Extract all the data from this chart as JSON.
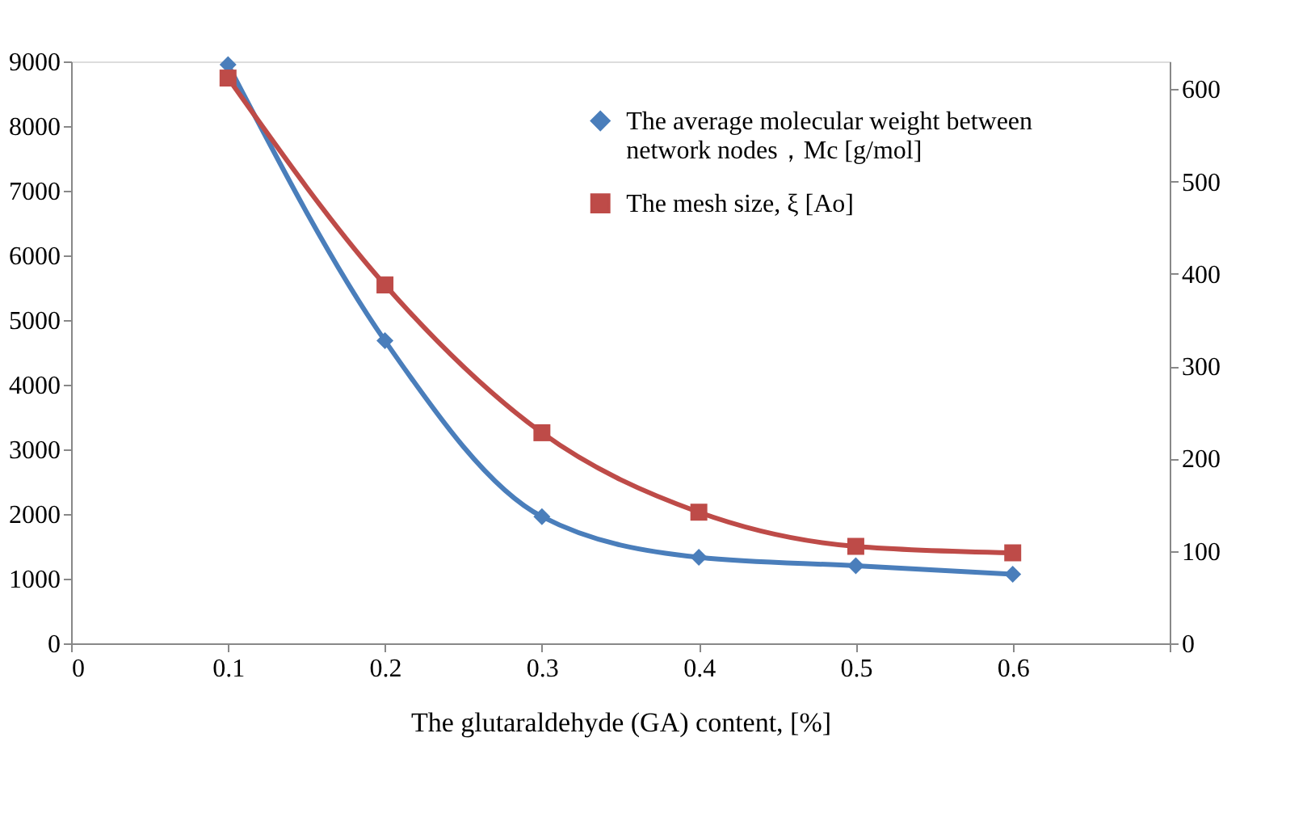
{
  "chart_data": {
    "type": "line",
    "xlabel": "The glutaraldehyde (GA) content, [%]",
    "x": [
      0.1,
      0.2,
      0.3,
      0.4,
      0.5,
      0.6
    ],
    "xlim": [
      0,
      0.7
    ],
    "xticks": [
      0,
      0.1,
      0.2,
      0.3,
      0.4,
      0.5,
      0.6,
      {
        "value": 0.7,
        "label": null
      }
    ],
    "ylim": [
      0,
      9000
    ],
    "yticks": [
      0,
      1000,
      2000,
      3000,
      4000,
      5000,
      6000,
      7000,
      8000,
      9000
    ],
    "y2lim": [
      0,
      630
    ],
    "y2ticks": [
      0,
      100,
      200,
      300,
      400,
      500,
      600
    ],
    "grid": false,
    "legend": "top right",
    "series": [
      {
        "name": "The average molecular weight between network nodes，Mc  [g/mol]",
        "color": "#4a7ebb",
        "marker": "diamond",
        "values": [
          8950,
          4680,
          1960,
          1330,
          1200,
          1070
        ]
      },
      {
        "name": "The mesh size, ξ [Ao]",
        "color": "#be4b48",
        "marker": "square",
        "axis": "y2",
        "values": [
          612,
          388,
          228,
          142,
          105,
          98
        ]
      }
    ]
  }
}
